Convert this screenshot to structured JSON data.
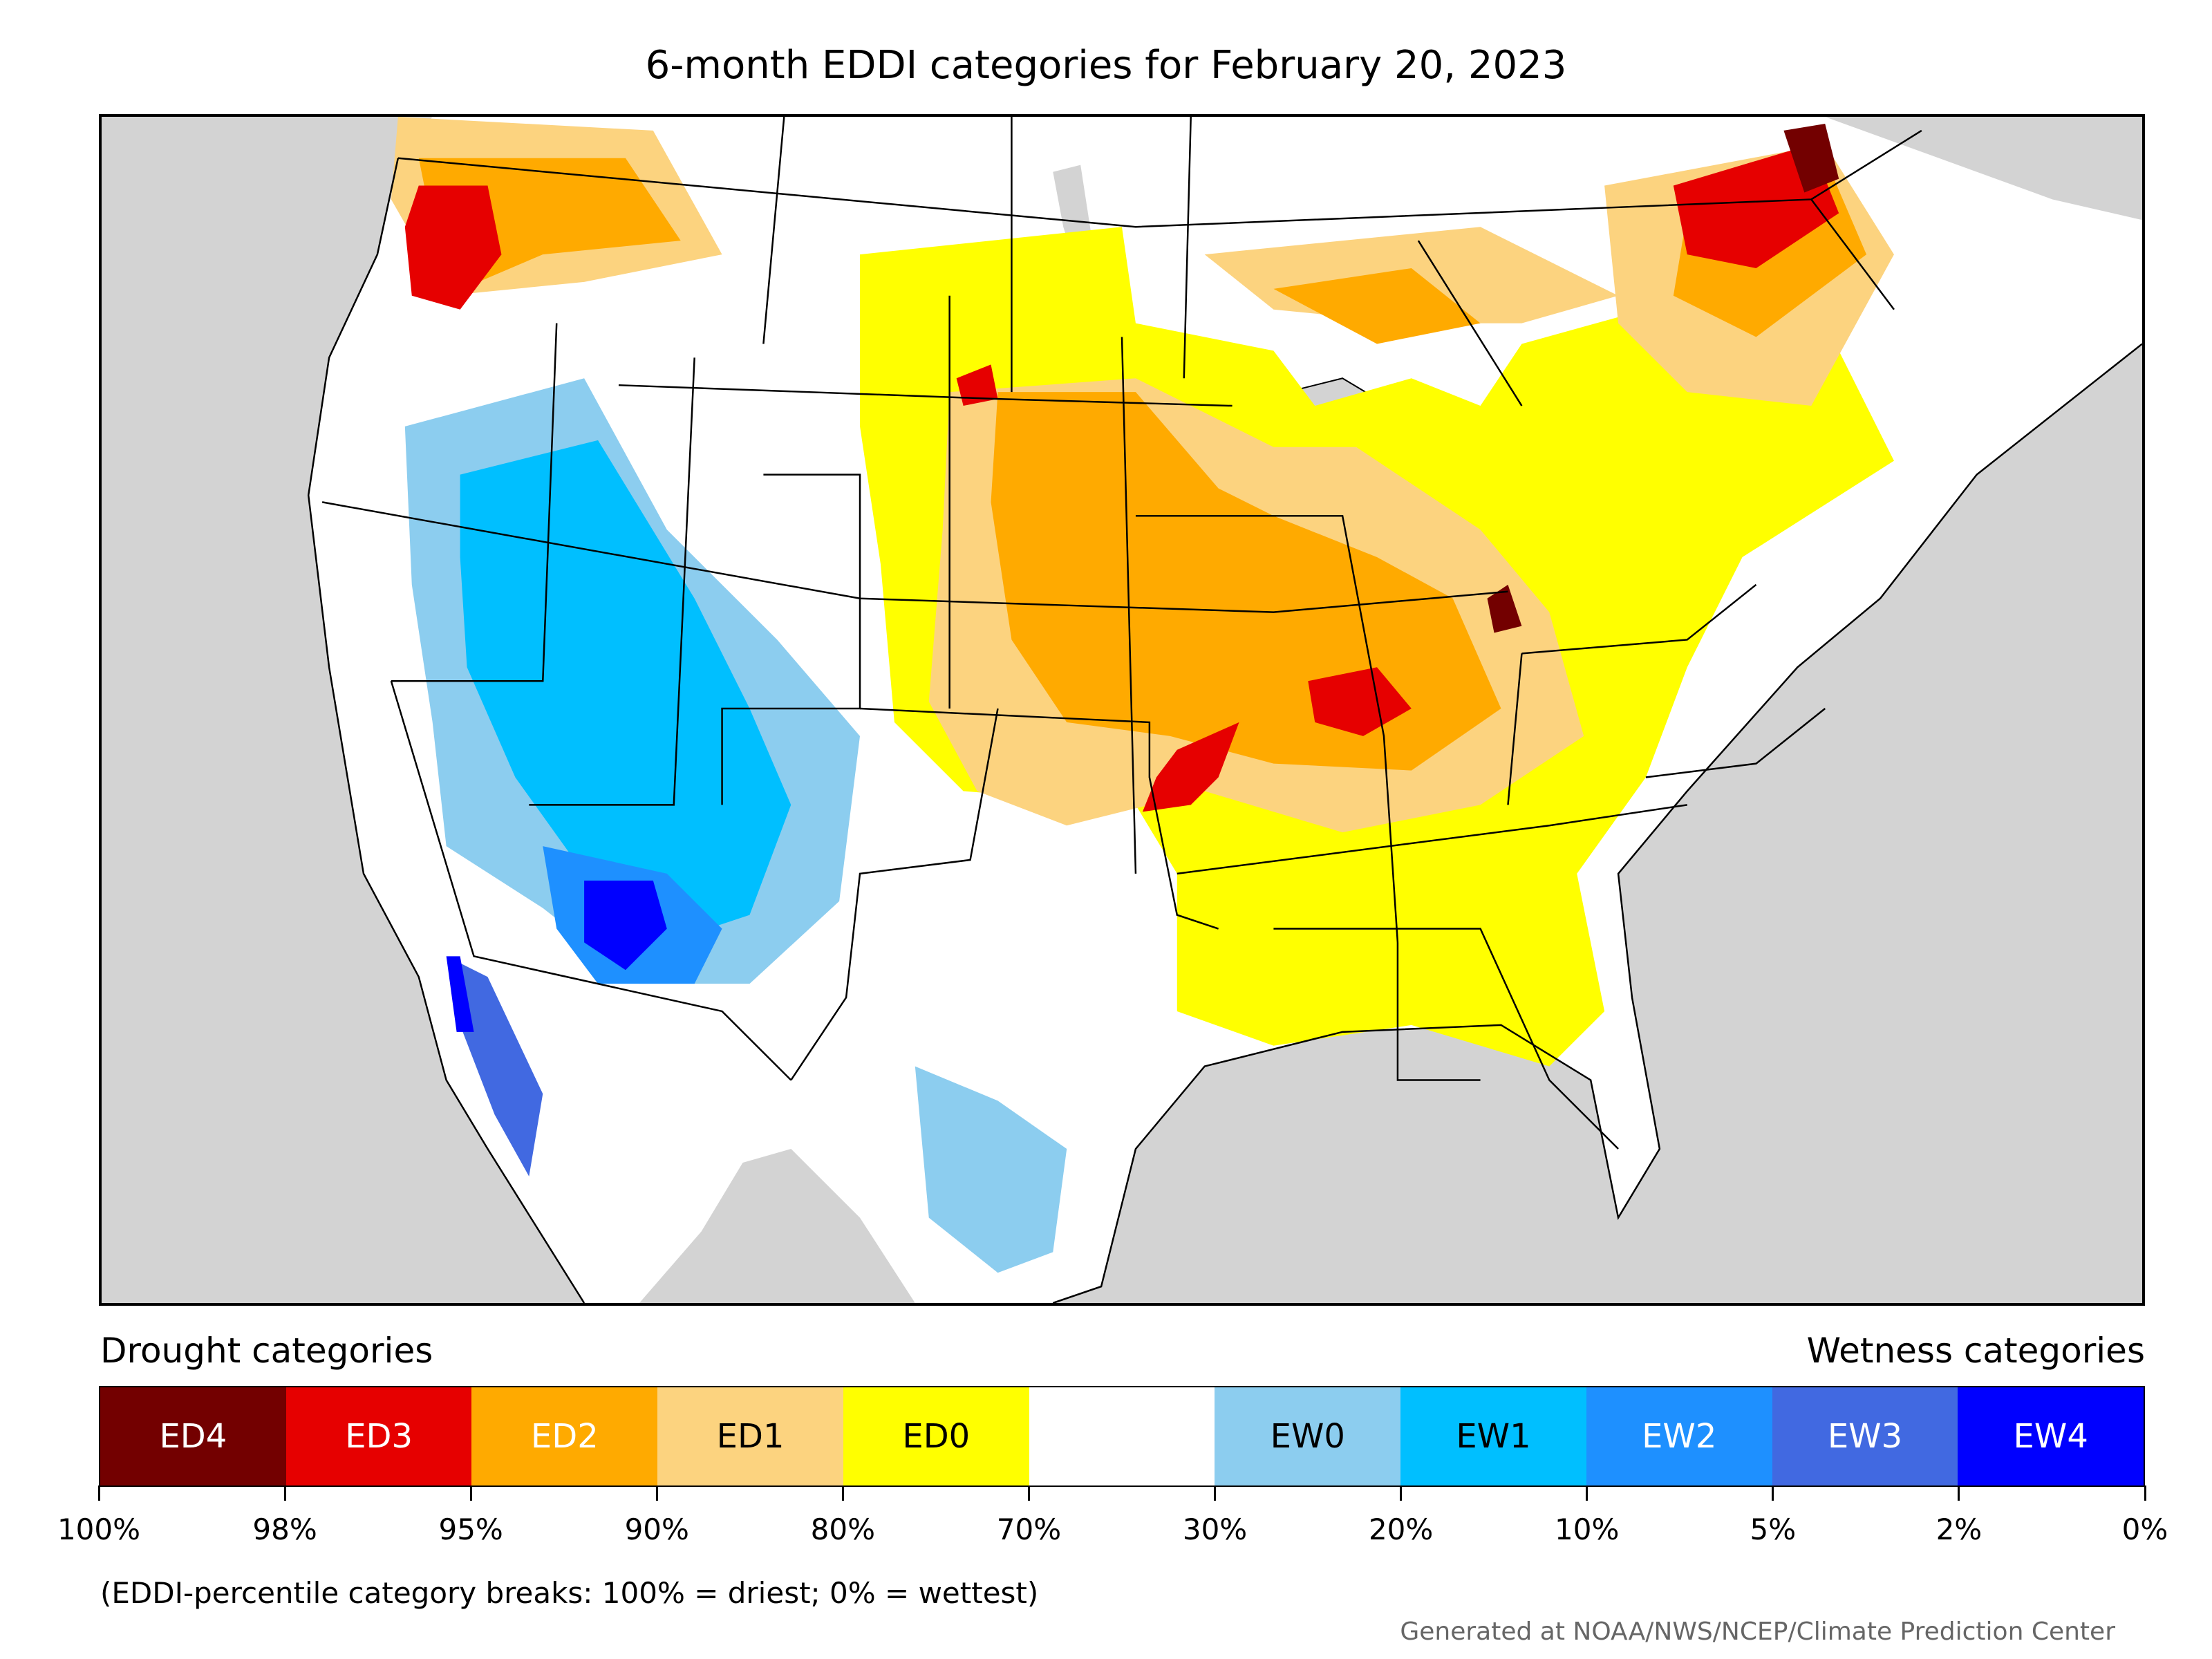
{
  "title": "6-month EDDI categories for February 20, 2023",
  "legend": {
    "left_label": "Drought categories",
    "right_label": "Wetness categories",
    "categories": [
      {
        "label": "ED4",
        "color": "#730000",
        "text_color": "#ffffff"
      },
      {
        "label": "ED3",
        "color": "#e60000",
        "text_color": "#ffffff"
      },
      {
        "label": "ED2",
        "color": "#ffaa00",
        "text_color": "#ffffff"
      },
      {
        "label": "ED1",
        "color": "#fcd37f",
        "text_color": "#000000"
      },
      {
        "label": "ED0",
        "color": "#ffff00",
        "text_color": "#000000"
      },
      {
        "label": "",
        "color": "#ffffff",
        "text_color": "#000000"
      },
      {
        "label": "EW0",
        "color": "#8ccdef",
        "text_color": "#000000"
      },
      {
        "label": "EW1",
        "color": "#00bfff",
        "text_color": "#000000"
      },
      {
        "label": "EW2",
        "color": "#1e90ff",
        "text_color": "#ffffff"
      },
      {
        "label": "EW3",
        "color": "#4169e1",
        "text_color": "#ffffff"
      },
      {
        "label": "EW4",
        "color": "#0000ff",
        "text_color": "#ffffff"
      }
    ],
    "breaks": [
      "100%",
      "98%",
      "95%",
      "90%",
      "80%",
      "70%",
      "30%",
      "20%",
      "10%",
      "5%",
      "2%",
      "0%"
    ]
  },
  "note": "(EDDI-percentile category breaks: 100% = driest; 0% = wettest)",
  "credit": "Generated at NOAA/NWS/NCEP/Climate Prediction Center"
}
